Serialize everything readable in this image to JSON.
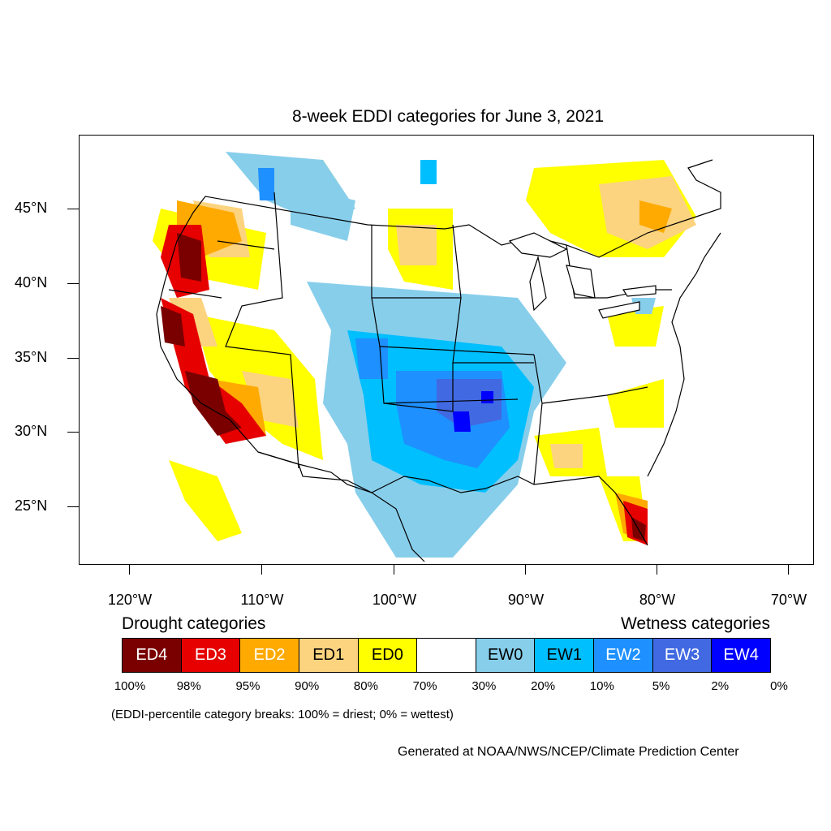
{
  "title": "8-week EDDI categories for June 3, 2021",
  "lat_labels": [
    "45°N",
    "40°N",
    "35°N",
    "30°N",
    "25°N"
  ],
  "lon_labels": [
    "120°W",
    "110°W",
    "100°W",
    "90°W",
    "80°W",
    "70°W"
  ],
  "legend": {
    "drought_heading": "Drought categories",
    "wetness_heading": "Wetness categories",
    "categories": [
      {
        "label": "ED4",
        "color": "#7a0000",
        "text_color": "#ffffff"
      },
      {
        "label": "ED3",
        "color": "#e60000",
        "text_color": "#ffffff"
      },
      {
        "label": "ED2",
        "color": "#ffaa00",
        "text_color": "#ffffff"
      },
      {
        "label": "ED1",
        "color": "#fcd37f",
        "text_color": "#000000"
      },
      {
        "label": "ED0",
        "color": "#ffff00",
        "text_color": "#000000"
      },
      {
        "label": "",
        "color": "#ffffff",
        "text_color": "#000000"
      },
      {
        "label": "EW0",
        "color": "#87ceeb",
        "text_color": "#000000"
      },
      {
        "label": "EW1",
        "color": "#00bfff",
        "text_color": "#000000"
      },
      {
        "label": "EW2",
        "color": "#1e90ff",
        "text_color": "#ffffff"
      },
      {
        "label": "EW3",
        "color": "#4169e1",
        "text_color": "#ffffff"
      },
      {
        "label": "EW4",
        "color": "#0000ff",
        "text_color": "#ffffff"
      }
    ],
    "percentiles": [
      "100%",
      "98%",
      "95%",
      "90%",
      "80%",
      "70%",
      "30%",
      "20%",
      "10%",
      "5%",
      "2%",
      "0%"
    ]
  },
  "note": "(EDDI-percentile category breaks: 100% = driest; 0% = wettest)",
  "credit": "Generated at NOAA/NWS/NCEP/Climate Prediction Center"
}
